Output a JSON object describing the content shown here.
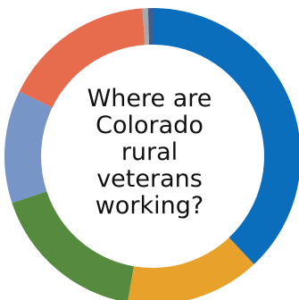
{
  "chart_data": {
    "type": "pie",
    "title_lines": [
      "Where are",
      "Colorado",
      "rural",
      "veterans",
      "working?"
    ],
    "slices": [
      {
        "value": 38.0,
        "color": "#0A6EBD"
      },
      {
        "value": 14.7,
        "color": "#E8A22C"
      },
      {
        "value": 17.2,
        "color": "#568A3F"
      },
      {
        "value": 12.3,
        "color": "#7895C8"
      },
      {
        "value": 16.7,
        "color": "#E76B4D"
      },
      {
        "value": 0.6,
        "color": "#A9A9A9"
      },
      {
        "value": 0.5,
        "color": "#3F5E8C"
      }
    ]
  }
}
